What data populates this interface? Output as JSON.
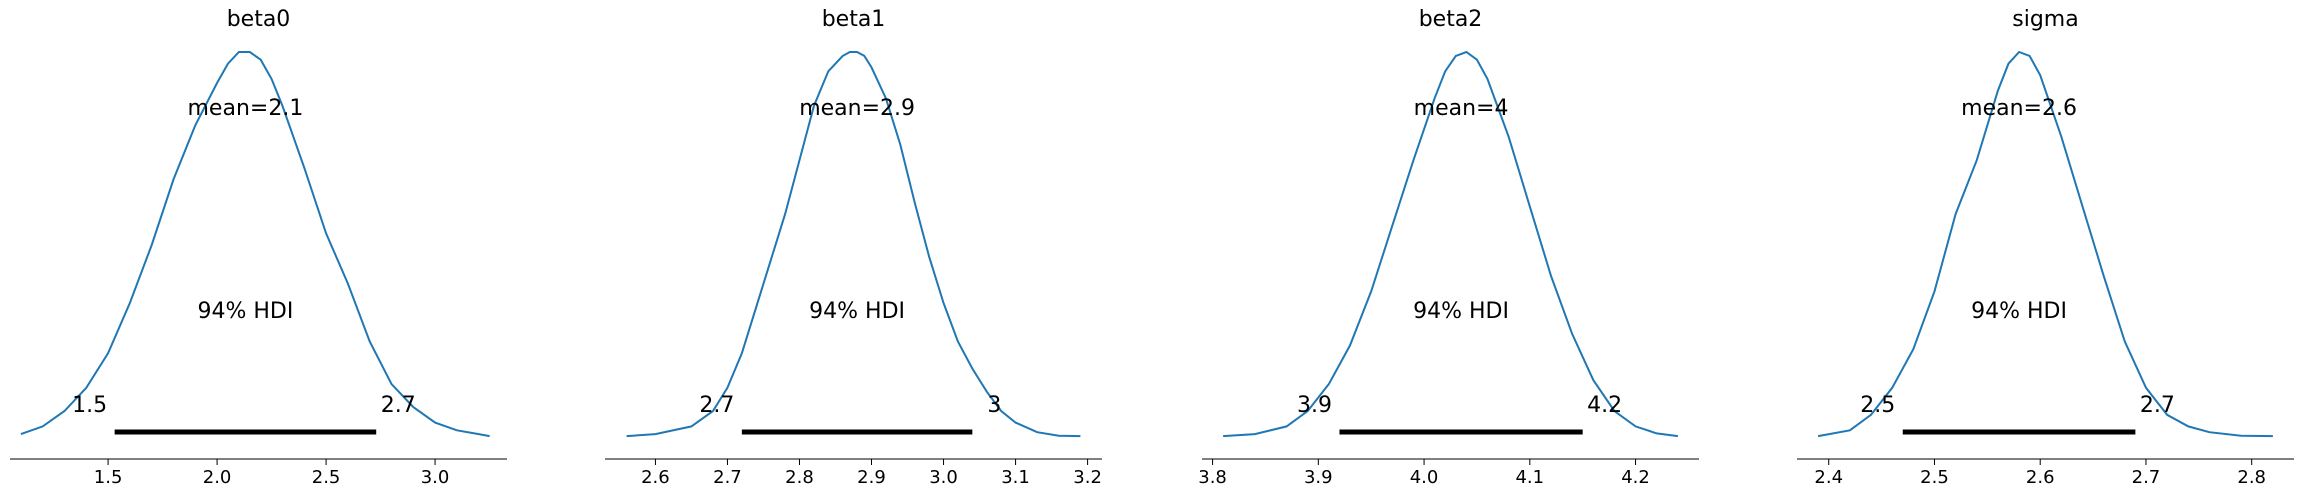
{
  "chart_data": [
    {
      "type": "line",
      "title": "beta0",
      "mean_label": "mean=2.1",
      "hdi_label": "94% HDI",
      "hdi": [
        1.53,
        2.73
      ],
      "hdi_labels": [
        "1.5",
        "2.7"
      ],
      "xlim": [
        1.05,
        3.33
      ],
      "xticks": [
        1.5,
        2.0,
        2.5,
        3.0
      ],
      "xtick_labels": [
        "1.5",
        "2.0",
        "2.5",
        "3.0"
      ],
      "density": {
        "x": [
          1.1,
          1.2,
          1.3,
          1.4,
          1.5,
          1.6,
          1.7,
          1.8,
          1.9,
          2.0,
          2.05,
          2.1,
          2.15,
          2.2,
          2.25,
          2.3,
          2.4,
          2.5,
          2.6,
          2.7,
          2.8,
          2.9,
          3.0,
          3.1,
          3.2,
          3.25
        ],
        "y": [
          0.01,
          0.03,
          0.07,
          0.13,
          0.22,
          0.35,
          0.5,
          0.67,
          0.81,
          0.92,
          0.97,
          1.0,
          1.0,
          0.98,
          0.93,
          0.86,
          0.7,
          0.53,
          0.4,
          0.25,
          0.14,
          0.08,
          0.04,
          0.02,
          0.01,
          0.005
        ]
      }
    },
    {
      "type": "line",
      "title": "beta1",
      "mean_label": "mean=2.9",
      "hdi_label": "94% HDI",
      "hdi": [
        2.72,
        3.04
      ],
      "hdi_labels": [
        "2.7",
        "3"
      ],
      "xlim": [
        2.53,
        3.22
      ],
      "xticks": [
        2.6,
        2.7,
        2.8,
        2.9,
        3.0,
        3.1,
        3.2
      ],
      "xtick_labels": [
        "2.6",
        "2.7",
        "2.8",
        "2.9",
        "3.0",
        "3.1",
        "3.2"
      ],
      "density": {
        "x": [
          2.56,
          2.6,
          2.65,
          2.68,
          2.7,
          2.72,
          2.75,
          2.78,
          2.8,
          2.82,
          2.84,
          2.86,
          2.87,
          2.88,
          2.89,
          2.9,
          2.92,
          2.94,
          2.96,
          2.98,
          3.0,
          3.02,
          3.04,
          3.06,
          3.08,
          3.1,
          3.13,
          3.16,
          3.19
        ],
        "y": [
          0.005,
          0.01,
          0.03,
          0.07,
          0.13,
          0.22,
          0.4,
          0.58,
          0.72,
          0.86,
          0.95,
          0.99,
          1.0,
          1.0,
          0.99,
          0.96,
          0.88,
          0.76,
          0.61,
          0.47,
          0.35,
          0.25,
          0.18,
          0.12,
          0.07,
          0.04,
          0.015,
          0.006,
          0.005
        ]
      }
    },
    {
      "type": "line",
      "title": "beta2",
      "mean_label": "mean=4",
      "hdi_label": "94% HDI",
      "hdi": [
        3.92,
        4.15
      ],
      "hdi_labels": [
        "3.9",
        "4.2"
      ],
      "xlim": [
        3.79,
        4.26
      ],
      "xticks": [
        3.8,
        3.9,
        4.0,
        4.1,
        4.2
      ],
      "xtick_labels": [
        "3.8",
        "3.9",
        "4.0",
        "4.1",
        "4.2"
      ],
      "density": {
        "x": [
          3.81,
          3.84,
          3.87,
          3.89,
          3.91,
          3.93,
          3.95,
          3.97,
          3.99,
          4.01,
          4.02,
          4.03,
          4.04,
          4.05,
          4.06,
          4.08,
          4.1,
          4.12,
          4.14,
          4.16,
          4.18,
          4.2,
          4.22,
          4.24
        ],
        "y": [
          0.005,
          0.01,
          0.03,
          0.07,
          0.14,
          0.24,
          0.38,
          0.55,
          0.72,
          0.88,
          0.95,
          0.99,
          1.0,
          0.98,
          0.93,
          0.78,
          0.6,
          0.42,
          0.27,
          0.15,
          0.07,
          0.03,
          0.012,
          0.005
        ]
      }
    },
    {
      "type": "line",
      "title": "sigma",
      "mean_label": "mean=2.6",
      "hdi_label": "94% HDI",
      "hdi": [
        2.47,
        2.69
      ],
      "hdi_labels": [
        "2.5",
        "2.7"
      ],
      "xlim": [
        2.37,
        2.84
      ],
      "xticks": [
        2.4,
        2.5,
        2.6,
        2.7,
        2.8
      ],
      "xtick_labels": [
        "2.4",
        "2.5",
        "2.6",
        "2.7",
        "2.8"
      ],
      "density": {
        "x": [
          2.39,
          2.42,
          2.44,
          2.46,
          2.48,
          2.5,
          2.52,
          2.54,
          2.56,
          2.57,
          2.58,
          2.59,
          2.6,
          2.62,
          2.64,
          2.66,
          2.68,
          2.7,
          2.72,
          2.74,
          2.76,
          2.79,
          2.82
        ],
        "y": [
          0.005,
          0.02,
          0.06,
          0.13,
          0.23,
          0.38,
          0.58,
          0.72,
          0.9,
          0.97,
          1.0,
          0.99,
          0.94,
          0.78,
          0.6,
          0.42,
          0.25,
          0.13,
          0.06,
          0.03,
          0.015,
          0.006,
          0.005
        ]
      }
    }
  ]
}
